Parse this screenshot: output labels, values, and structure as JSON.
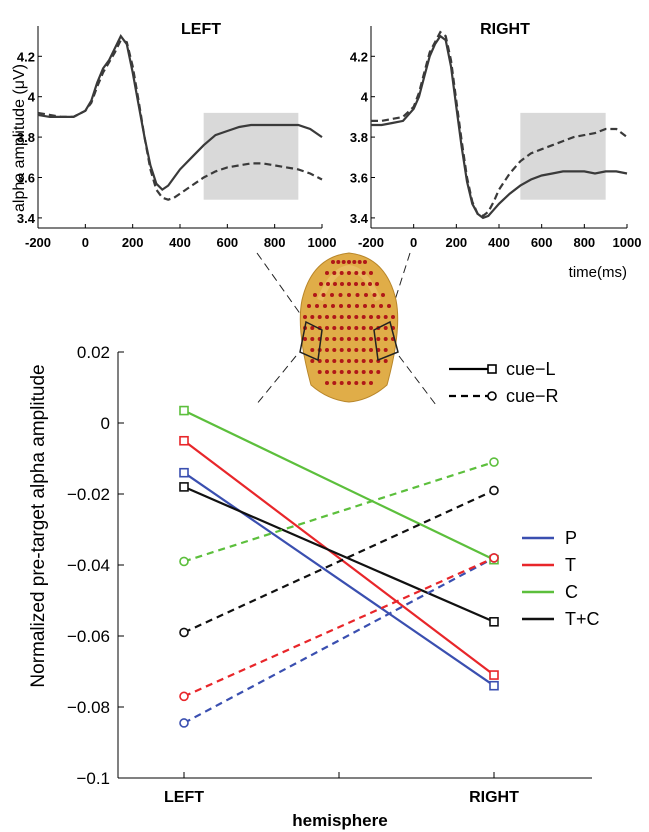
{
  "chart_data": [
    {
      "type": "line",
      "title": "LEFT",
      "xlabel": "",
      "ylabel": "alpha amplitude (μV)",
      "xlim": [
        -200,
        1000
      ],
      "ylim": [
        3.35,
        4.35
      ],
      "x_ticks": [
        "-200",
        "0",
        "200",
        "400",
        "600",
        "800",
        "1000"
      ],
      "y_ticks": [
        "3.4",
        "3.6",
        "3.8",
        "4",
        "4.2"
      ],
      "highlight_window": [
        500,
        900
      ],
      "series": [
        {
          "style": "solid",
          "x": [
            -200,
            -150,
            -100,
            -50,
            0,
            25,
            50,
            75,
            100,
            125,
            150,
            175,
            200,
            225,
            250,
            275,
            300,
            325,
            350,
            375,
            400,
            450,
            500,
            550,
            600,
            650,
            700,
            750,
            800,
            850,
            900,
            950,
            1000
          ],
          "y": [
            3.91,
            3.9,
            3.9,
            3.9,
            3.93,
            3.98,
            4.07,
            4.14,
            4.18,
            4.24,
            4.3,
            4.26,
            4.12,
            3.96,
            3.8,
            3.66,
            3.57,
            3.54,
            3.56,
            3.6,
            3.64,
            3.7,
            3.76,
            3.81,
            3.83,
            3.85,
            3.86,
            3.86,
            3.86,
            3.86,
            3.86,
            3.84,
            3.8
          ]
        },
        {
          "style": "dashed",
          "x": [
            -200,
            -150,
            -100,
            -50,
            0,
            25,
            50,
            75,
            100,
            125,
            150,
            175,
            200,
            225,
            250,
            275,
            300,
            325,
            350,
            375,
            400,
            450,
            500,
            550,
            600,
            650,
            700,
            750,
            800,
            850,
            900,
            950,
            1000
          ],
          "y": [
            3.92,
            3.91,
            3.9,
            3.9,
            3.93,
            3.97,
            4.05,
            4.12,
            4.17,
            4.22,
            4.28,
            4.27,
            4.15,
            3.98,
            3.8,
            3.64,
            3.54,
            3.5,
            3.49,
            3.5,
            3.52,
            3.56,
            3.6,
            3.63,
            3.65,
            3.66,
            3.67,
            3.67,
            3.66,
            3.65,
            3.64,
            3.62,
            3.59
          ]
        }
      ]
    },
    {
      "type": "line",
      "title": "RIGHT",
      "xlabel": "time(ms)",
      "ylabel": "",
      "xlim": [
        -200,
        1000
      ],
      "ylim": [
        3.35,
        4.35
      ],
      "x_ticks": [
        "-200",
        "0",
        "200",
        "400",
        "600",
        "800",
        "1000"
      ],
      "y_ticks": [
        "3.4",
        "3.6",
        "3.8",
        "4",
        "4.2"
      ],
      "highlight_window": [
        500,
        900
      ],
      "series": [
        {
          "style": "solid",
          "x": [
            -200,
            -150,
            -100,
            -50,
            0,
            25,
            50,
            75,
            100,
            125,
            150,
            175,
            200,
            225,
            250,
            275,
            300,
            325,
            350,
            375,
            400,
            450,
            500,
            550,
            600,
            650,
            700,
            750,
            800,
            850,
            900,
            950,
            1000
          ],
          "y": [
            3.86,
            3.86,
            3.87,
            3.88,
            3.94,
            4.0,
            4.1,
            4.2,
            4.26,
            4.3,
            4.28,
            4.15,
            3.95,
            3.75,
            3.58,
            3.47,
            3.42,
            3.4,
            3.41,
            3.44,
            3.47,
            3.52,
            3.56,
            3.59,
            3.61,
            3.62,
            3.63,
            3.63,
            3.63,
            3.62,
            3.63,
            3.63,
            3.62
          ]
        },
        {
          "style": "dashed",
          "x": [
            -200,
            -150,
            -100,
            -50,
            0,
            25,
            50,
            75,
            100,
            125,
            150,
            175,
            200,
            225,
            250,
            275,
            300,
            325,
            350,
            375,
            400,
            450,
            500,
            550,
            600,
            650,
            700,
            750,
            800,
            850,
            900,
            950,
            1000
          ],
          "y": [
            3.88,
            3.88,
            3.89,
            3.9,
            3.95,
            4.02,
            4.12,
            4.22,
            4.27,
            4.32,
            4.3,
            4.18,
            3.98,
            3.78,
            3.6,
            3.48,
            3.42,
            3.41,
            3.43,
            3.48,
            3.54,
            3.62,
            3.68,
            3.72,
            3.74,
            3.76,
            3.78,
            3.8,
            3.81,
            3.82,
            3.84,
            3.84,
            3.8
          ]
        }
      ]
    },
    {
      "type": "line",
      "title": "",
      "xlabel": "hemisphere",
      "ylabel": "Normalized pre-target alpha amplitude",
      "categories": [
        "LEFT",
        "RIGHT"
      ],
      "ylim": [
        -0.1,
        0.02
      ],
      "y_ticks": [
        "0.02",
        "0",
        "−0.02",
        "−0.04",
        "−0.06",
        "−0.08",
        "−0.1"
      ],
      "cue_legend": [
        {
          "label": "cue−L",
          "style": "solid",
          "marker": "square"
        },
        {
          "label": "cue−R",
          "style": "dashed",
          "marker": "circle"
        }
      ],
      "region_legend": [
        {
          "label": "P",
          "color": "#3a4fb0"
        },
        {
          "label": "T",
          "color": "#e8262a"
        },
        {
          "label": "C",
          "color": "#5cbf3c"
        },
        {
          "label": "T+C",
          "color": "#111111"
        }
      ],
      "series": [
        {
          "region": "P",
          "cue": "cue-L",
          "color": "#3a4fb0",
          "values": [
            -0.014,
            -0.074
          ]
        },
        {
          "region": "T",
          "cue": "cue-L",
          "color": "#e8262a",
          "values": [
            -0.005,
            -0.071
          ]
        },
        {
          "region": "C",
          "cue": "cue-L",
          "color": "#5cbf3c",
          "values": [
            0.0035,
            -0.0385
          ]
        },
        {
          "region": "T+C",
          "cue": "cue-L",
          "color": "#111111",
          "values": [
            -0.018,
            -0.056
          ]
        },
        {
          "region": "P",
          "cue": "cue-R",
          "color": "#3a4fb0",
          "values": [
            -0.0845,
            -0.038
          ]
        },
        {
          "region": "T",
          "cue": "cue-R",
          "color": "#e8262a",
          "values": [
            -0.077,
            -0.038
          ]
        },
        {
          "region": "C",
          "cue": "cue-R",
          "color": "#5cbf3c",
          "values": [
            -0.039,
            -0.011
          ]
        },
        {
          "region": "T+C",
          "cue": "cue-R",
          "color": "#111111",
          "values": [
            -0.059,
            -0.019
          ]
        }
      ]
    }
  ],
  "head_icon": "head-electrode-map-icon"
}
